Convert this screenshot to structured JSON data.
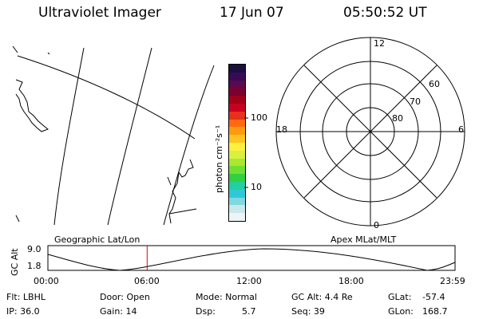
{
  "header": {
    "instrument": "Ultraviolet Imager",
    "date": "17 Jun 07",
    "time": "05:50:52 UT"
  },
  "colorbar": {
    "unit_label": "photon cm⁻²s⁻¹",
    "ticks": [
      "100",
      "10"
    ],
    "colors": [
      "#1a1040",
      "#3a0a55",
      "#5a0a50",
      "#7a0030",
      "#a00018",
      "#c80020",
      "#e8301a",
      "#ff6a10",
      "#ff9a10",
      "#ffc420",
      "#fff040",
      "#d8f040",
      "#a8e830",
      "#70e030",
      "#30d040",
      "#20d0a0",
      "#30c8d8",
      "#80d8e0",
      "#c8e8ec",
      "#eef4f4"
    ]
  },
  "polar_plot": {
    "labels": {
      "top": "12",
      "bottom": "0",
      "left": "18",
      "right": "6"
    },
    "rings": [
      "60",
      "70",
      "80"
    ]
  },
  "map_panel": {
    "label": "Geographic Lat/Lon"
  },
  "apex_label": "Apex MLat/MLT",
  "timeline": {
    "axis_label": "GC Alt",
    "y_ticks": [
      "9.0",
      "1.8"
    ],
    "x_ticks": [
      "00:00",
      "06:00",
      "12:00",
      "18:00",
      "23:59"
    ],
    "marker_hour": 5.85
  },
  "info": {
    "filter": "Flt: LBHL",
    "ip": "IP: 36.0",
    "door": "Door: Open",
    "gain": "Gain: 14",
    "mode_label": "Mode: Normal",
    "dsp_label": "Dsp:",
    "dsp_value": "5.7",
    "gc_alt": "GC Alt: 4.4 Re",
    "seq": "Seq: 39",
    "glat_label": "GLat:",
    "glat_value": "-57.4",
    "glon_label": "GLon:",
    "glon_value": "168.7"
  }
}
